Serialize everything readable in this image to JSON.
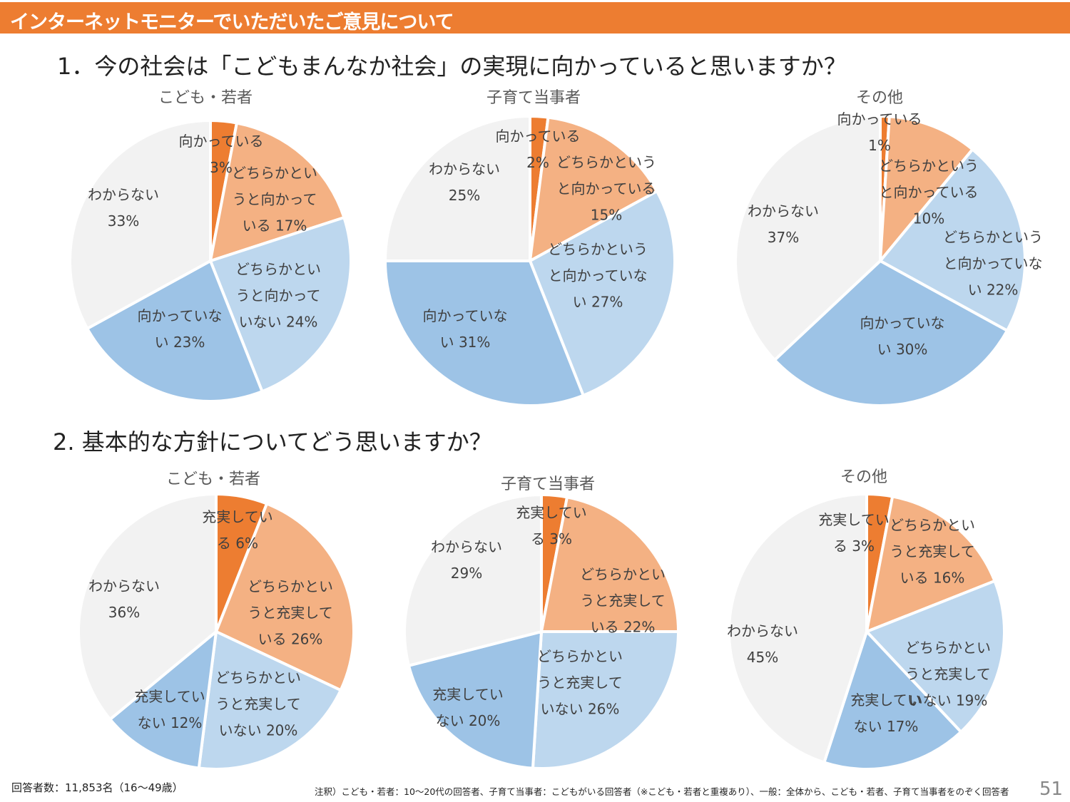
{
  "header": {
    "title": "インターネットモニターでいただいたご意見について"
  },
  "questions": [
    {
      "title": "1．今の社会は「こどもまんなか社会」の実現に向かっていると思いますか？"
    },
    {
      "title": "2.  基本的な方針についてどう思いますか？"
    }
  ],
  "colors": [
    "#ED7D31",
    "#F4B183",
    "#BDD7EE",
    "#9DC3E6",
    "#F2F2F2"
  ],
  "chart_data": [
    {
      "type": "pie",
      "question": 1,
      "title": "こども・若者",
      "categories": [
        "向かっている",
        "どちらかというと向かっている",
        "どちらかというと向かっていない",
        "向かっていない",
        "わからない"
      ],
      "values": [
        3,
        17,
        24,
        23,
        33
      ]
    },
    {
      "type": "pie",
      "question": 1,
      "title": "子育て当事者",
      "categories": [
        "向かっている",
        "どちらかというと向かっている",
        "どちらかというと向かっていない",
        "向かっていない",
        "わからない"
      ],
      "values": [
        2,
        15,
        27,
        31,
        25
      ]
    },
    {
      "type": "pie",
      "question": 1,
      "title": "その他",
      "categories": [
        "向かっている",
        "どちらかというと向かっている",
        "どちらかというと向かっていない",
        "向かっていない",
        "わからない"
      ],
      "values": [
        1,
        10,
        22,
        30,
        37
      ]
    },
    {
      "type": "pie",
      "question": 2,
      "title": "こども・若者",
      "categories": [
        "充実している",
        "どちらかというと充実している",
        "どちらかというと充実していない",
        "充実していない",
        "わからない"
      ],
      "values": [
        6,
        26,
        20,
        12,
        36
      ]
    },
    {
      "type": "pie",
      "question": 2,
      "title": "子育て当事者",
      "categories": [
        "充実している",
        "どちらかというと充実している",
        "どちらかというと充実していない",
        "充実していない",
        "わからない"
      ],
      "values": [
        3,
        22,
        26,
        20,
        29
      ]
    },
    {
      "type": "pie",
      "question": 2,
      "title": "その他",
      "categories": [
        "充実している",
        "どちらかというと充実している",
        "どちらかというと充実していない",
        "充実していない",
        "わからない"
      ],
      "values": [
        3,
        16,
        19,
        17,
        45
      ]
    }
  ],
  "footer": {
    "respondents": "回答者数：11,853名（16～49歳）",
    "note": "注釈）こども・若者：10～20代の回答者、子育て当事者：こどもがいる回答者（※こども・若者と重複あり）、一般：全体から、こども・若者、子育て当事者をのぞく回答者",
    "page": "51"
  }
}
